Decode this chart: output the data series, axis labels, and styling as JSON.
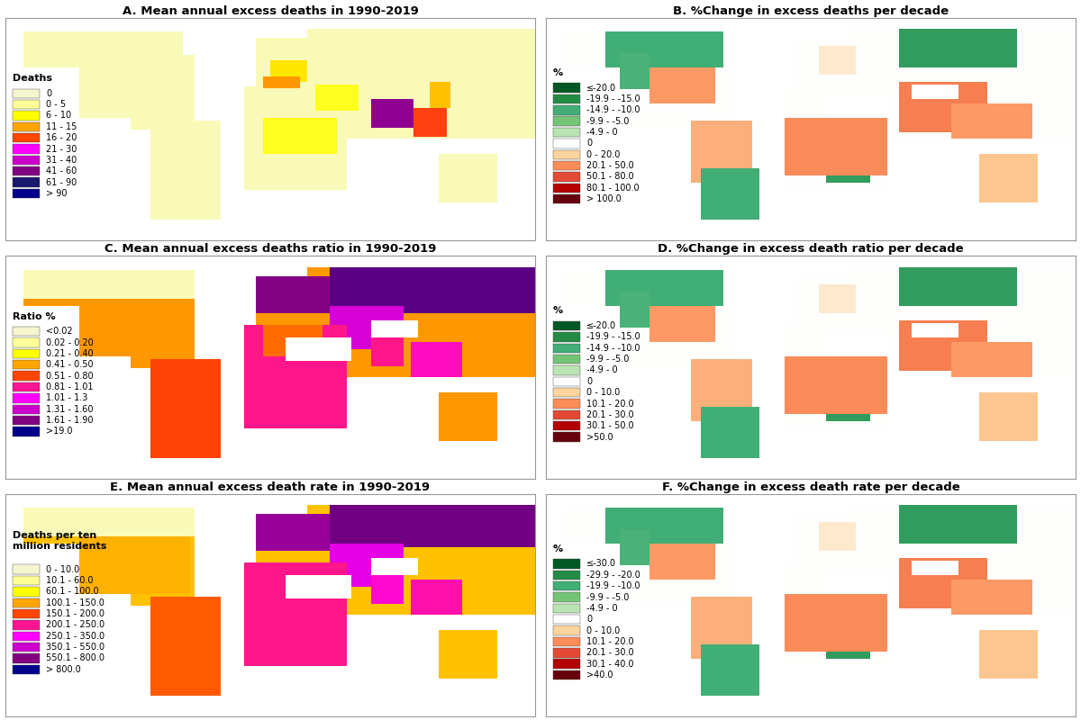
{
  "titles": [
    "A. Mean annual excess deaths in 1990-2019",
    "B. %Change in excess deaths per decade",
    "C. Mean annual excess deaths ratio in 1990-2019",
    "D. %Change in excess death ratio per decade",
    "E. Mean annual excess death rate in 1990-2019",
    "F. %Change in excess death rate per decade"
  ],
  "legend_A": {
    "title": "Deaths",
    "labels": [
      "0",
      "0 - 5",
      "6 - 10",
      "11 - 15",
      "16 - 20",
      "21 - 30",
      "31 - 40",
      "41 - 60",
      "61 - 90",
      "> 90"
    ],
    "colors": [
      "#f5f5d0",
      "#ffff99",
      "#ffff00",
      "#ffa500",
      "#ff4500",
      "#ff00ff",
      "#cc00cc",
      "#800080",
      "#191970",
      "#00008b"
    ]
  },
  "legend_B": {
    "title": "%",
    "labels": [
      "≤-20.0",
      "-19.9 - -15.0",
      "-14.9 - -10.0",
      "-9.9 - -5.0",
      "-4.9 - 0",
      "0",
      "0 - 20.0",
      "20.1 - 50.0",
      "50.1 - 80.0",
      "80.1 - 100.0",
      "> 100.0"
    ],
    "colors": [
      "#005824",
      "#238b45",
      "#41ae76",
      "#74c476",
      "#bae4b3",
      "#ffffff",
      "#fdd49e",
      "#fc8d59",
      "#e34a33",
      "#b30000",
      "#67000d"
    ]
  },
  "legend_C": {
    "title": "Ratio %",
    "labels": [
      "<0.02",
      "0.02 - 0.20",
      "0.21 - 0.40",
      "0.41 - 0.50",
      "0.51 - 0.80",
      "0.81 - 1.01",
      "1.01 - 1.3",
      "1.31 - 1.60",
      "1.61 - 1.90",
      ">19.0"
    ],
    "colors": [
      "#f5f5d0",
      "#ffff99",
      "#ffff00",
      "#ffa500",
      "#ff4500",
      "#ff1493",
      "#ff00ff",
      "#cc00cc",
      "#800080",
      "#00008b"
    ]
  },
  "legend_D": {
    "title": "%",
    "labels": [
      "≤-20.0",
      "-19.9 - -15.0",
      "-14.9 - -10.0",
      "-9.9 - -5.0",
      "-4.9 - 0",
      "0",
      "0 - 10.0",
      "10.1 - 20.0",
      "20.1 - 30.0",
      "30.1 - 50.0",
      ">50.0"
    ],
    "colors": [
      "#005824",
      "#238b45",
      "#41ae76",
      "#74c476",
      "#bae4b3",
      "#ffffff",
      "#fdd49e",
      "#fc8d59",
      "#e34a33",
      "#b30000",
      "#67000d"
    ]
  },
  "legend_E": {
    "title": "Deaths per ten\nmillion residents",
    "labels": [
      "0 - 10.0",
      "10.1 - 60.0",
      "60.1 - 100.0",
      "100.1 - 150.0",
      "150.1 - 200.0",
      "200.1 - 250.0",
      "250.1 - 350.0",
      "350.1 - 550.0",
      "550.1 - 800.0",
      "> 800.0"
    ],
    "colors": [
      "#f5f5d0",
      "#ffff99",
      "#ffff00",
      "#ffa500",
      "#ff4500",
      "#ff1493",
      "#ff00ff",
      "#cc00cc",
      "#800080",
      "#00008b"
    ]
  },
  "legend_F": {
    "title": "%",
    "labels": [
      "≤-30.0",
      "-29.9 - -20.0",
      "-19.9 - -10.0",
      "-9.9 - -5.0",
      "-4.9 - 0",
      "0",
      "0 - 10.0",
      "10.1 - 20.0",
      "20.1 - 30.0",
      "30.1 - 40.0",
      ">40.0"
    ],
    "colors": [
      "#005824",
      "#238b45",
      "#41ae76",
      "#74c476",
      "#bae4b3",
      "#ffffff",
      "#fdd49e",
      "#fc8d59",
      "#e34a33",
      "#b30000",
      "#67000d"
    ]
  },
  "fig_bg": "#ffffff",
  "ocean_color": "#ffffff",
  "land_border": "#aaaaaa",
  "title_fontsize": 9.5,
  "legend_fontsize": 7.0,
  "legend_title_fontsize": 8.0
}
